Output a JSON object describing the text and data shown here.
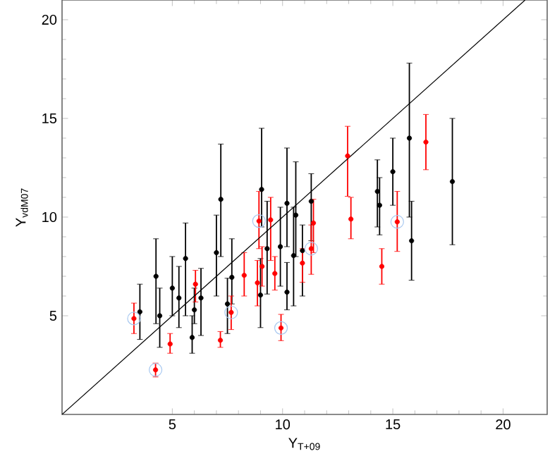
{
  "chart_data": {
    "type": "scatter",
    "xlabel": "Υ$_{T+09}$",
    "ylabel": "Υ$_{vdM07}$",
    "xlim": [
      0,
      22
    ],
    "ylim": [
      0,
      21
    ],
    "xticks": [
      5,
      10,
      15,
      20
    ],
    "yticks": [
      5,
      10,
      15,
      20
    ],
    "grid": false,
    "marker": "circle",
    "series": [
      {
        "color": "#000000",
        "x": [
          3.53,
          4.26,
          4.43,
          5.0,
          5.3,
          5.6,
          5.9,
          6.0,
          6.3,
          7.0,
          7.2,
          7.7,
          7.5,
          9.0,
          9.3,
          9.9,
          10.2,
          10.2,
          10.5,
          10.6,
          11.3,
          10.9,
          14.3,
          14.4,
          15.0,
          15.75,
          15.85,
          17.7,
          9.05
        ],
        "values": [
          5.2,
          7.0,
          5.0,
          6.4,
          5.9,
          7.9,
          3.9,
          5.3,
          5.9,
          8.2,
          10.9,
          6.95,
          5.6,
          6.05,
          8.4,
          8.5,
          6.2,
          10.7,
          8.05,
          10.1,
          10.8,
          8.3,
          11.3,
          10.6,
          12.3,
          14.0,
          8.8,
          11.8,
          11.4
        ],
        "errors": [
          [
            3.8,
            6.6
          ],
          [
            4.6,
            8.9
          ],
          [
            3.4,
            6.4
          ],
          [
            5.0,
            8.0
          ],
          [
            4.4,
            7.5
          ],
          [
            5.0,
            9.7
          ],
          [
            3.1,
            5.0
          ],
          [
            4.6,
            6.4
          ],
          [
            4.0,
            7.4
          ],
          [
            6.0,
            10.1
          ],
          [
            8.0,
            13.7
          ],
          [
            5.6,
            8.9
          ],
          [
            4.1,
            6.9
          ],
          [
            4.4,
            7.9
          ],
          [
            6.1,
            10.8
          ],
          [
            6.5,
            10.5
          ],
          [
            5.3,
            7.7
          ],
          [
            8.5,
            13.5
          ],
          [
            5.5,
            10.5
          ],
          [
            8.0,
            12.8
          ],
          [
            8.8,
            12.2
          ],
          [
            6.0,
            9.6
          ],
          [
            9.5,
            12.9
          ],
          [
            9.1,
            12.0
          ],
          [
            10.6,
            14.0
          ],
          [
            10.0,
            17.8
          ],
          [
            6.8,
            10.8
          ],
          [
            8.6,
            15.0
          ],
          [
            9.5,
            14.5
          ]
        ]
      },
      {
        "color": "#ff0000",
        "x": [
          3.26,
          4.24,
          4.9,
          6.05,
          7.18,
          7.67,
          8.26,
          8.86,
          8.93,
          9.07,
          9.46,
          9.65,
          9.93,
          10.9,
          11.3,
          11.4,
          12.95,
          13.1,
          14.5,
          15.2,
          16.5
        ],
        "values": [
          4.86,
          2.26,
          3.57,
          6.6,
          3.76,
          5.17,
          7.05,
          6.67,
          9.8,
          7.5,
          9.86,
          7.14,
          4.38,
          7.67,
          8.4,
          9.7,
          13.1,
          9.9,
          7.5,
          9.76,
          13.8
        ],
        "errors": [
          [
            4.1,
            5.64
          ],
          [
            1.9,
            2.6
          ],
          [
            3.1,
            4.1
          ],
          [
            5.7,
            7.3
          ],
          [
            3.4,
            4.2
          ],
          [
            4.3,
            6.0
          ],
          [
            6.0,
            8.2
          ],
          [
            5.5,
            7.8
          ],
          [
            8.4,
            11.3
          ],
          [
            6.5,
            8.5
          ],
          [
            7.8,
            11.0
          ],
          [
            6.3,
            8.0
          ],
          [
            3.74,
            5.07
          ],
          [
            6.7,
            8.4
          ],
          [
            7.1,
            9.6
          ],
          [
            8.2,
            10.9
          ],
          [
            11.05,
            14.6
          ],
          [
            8.9,
            11.0
          ],
          [
            6.6,
            8.4
          ],
          [
            8.26,
            11.3
          ],
          [
            12.4,
            15.2
          ]
        ]
      },
      {
        "color": "#a8c8f0",
        "x": [
          3.26,
          4.24,
          7.67,
          8.93,
          9.93,
          11.3,
          15.2
        ],
        "values": [
          4.86,
          2.26,
          5.17,
          9.8,
          4.38,
          8.4,
          9.76
        ]
      },
      {
        "type": "line",
        "marker": "none",
        "color": "#000000",
        "x": [
          0,
          21
        ],
        "values": [
          0,
          21
        ]
      }
    ]
  }
}
